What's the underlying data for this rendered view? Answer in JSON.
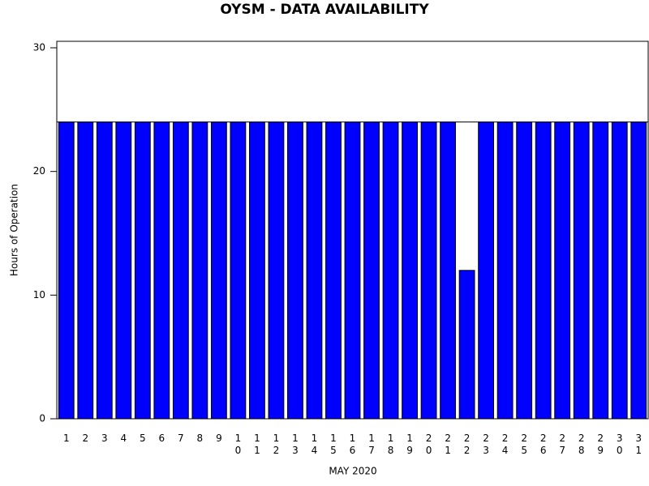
{
  "chart_data": {
    "type": "bar",
    "title": "OYSM - DATA AVAILABILITY",
    "x_label": "MAY 2020",
    "y_label": "Hours of Operation",
    "categories": [
      "1",
      "2",
      "3",
      "4",
      "5",
      "6",
      "7",
      "8",
      "9",
      "10",
      "11",
      "12",
      "13",
      "14",
      "15",
      "16",
      "17",
      "18",
      "19",
      "20",
      "21",
      "22",
      "23",
      "24",
      "25",
      "26",
      "27",
      "28",
      "29",
      "30",
      "31"
    ],
    "values": [
      24,
      24,
      24,
      24,
      24,
      24,
      24,
      24,
      24,
      24,
      24,
      24,
      24,
      24,
      24,
      24,
      24,
      24,
      24,
      24,
      24,
      12,
      24,
      24,
      24,
      24,
      24,
      24,
      24,
      24,
      24
    ],
    "color": "#0000ff",
    "reference_line": 24,
    "ylim": [
      0,
      30
    ],
    "yticks": [
      0,
      10,
      20,
      30
    ]
  }
}
